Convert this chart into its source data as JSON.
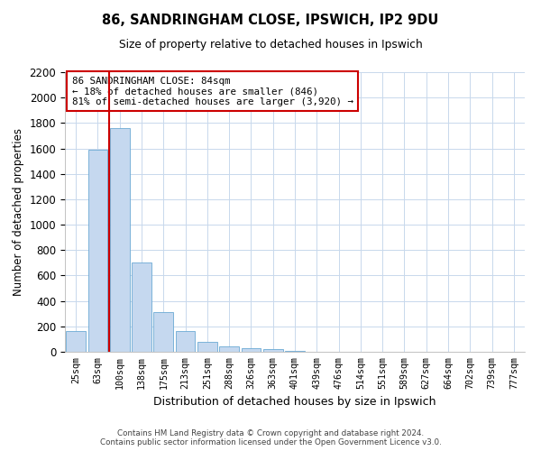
{
  "title1": "86, SANDRINGHAM CLOSE, IPSWICH, IP2 9DU",
  "title2": "Size of property relative to detached houses in Ipswich",
  "xlabel": "Distribution of detached houses by size in Ipswich",
  "ylabel": "Number of detached properties",
  "categories": [
    "25sqm",
    "63sqm",
    "100sqm",
    "138sqm",
    "175sqm",
    "213sqm",
    "251sqm",
    "288sqm",
    "326sqm",
    "363sqm",
    "401sqm",
    "439sqm",
    "476sqm",
    "514sqm",
    "551sqm",
    "589sqm",
    "627sqm",
    "664sqm",
    "702sqm",
    "739sqm",
    "777sqm"
  ],
  "values": [
    160,
    1590,
    1760,
    700,
    315,
    160,
    80,
    45,
    30,
    20,
    10,
    0,
    0,
    0,
    0,
    0,
    0,
    0,
    0,
    0,
    0
  ],
  "bar_color": "#c5d8ef",
  "bar_edgecolor": "#6baad4",
  "vline_x": 1.5,
  "vline_color": "#cc0000",
  "ylim": [
    0,
    2200
  ],
  "yticks": [
    0,
    200,
    400,
    600,
    800,
    1000,
    1200,
    1400,
    1600,
    1800,
    2000,
    2200
  ],
  "annotation_line1": "86 SANDRINGHAM CLOSE: 84sqm",
  "annotation_line2": "← 18% of detached houses are smaller (846)",
  "annotation_line3": "81% of semi-detached houses are larger (3,920) →",
  "annotation_box_color": "#ffffff",
  "annotation_box_edgecolor": "#cc0000",
  "footer1": "Contains HM Land Registry data © Crown copyright and database right 2024.",
  "footer2": "Contains public sector information licensed under the Open Government Licence v3.0.",
  "background_color": "#ffffff",
  "grid_color": "#c8d8ec"
}
